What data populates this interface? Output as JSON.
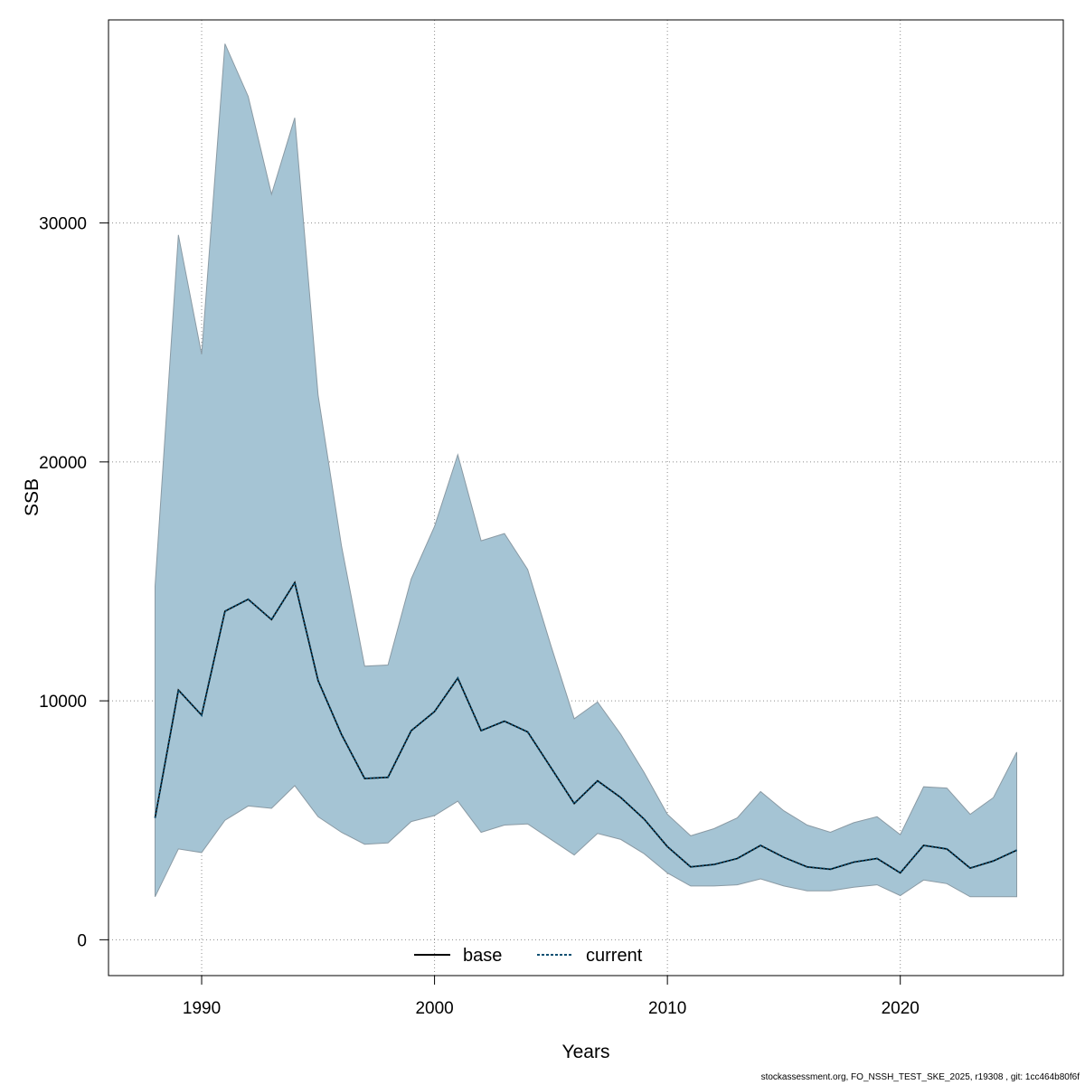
{
  "chart_data": {
    "type": "area",
    "title": "",
    "xlabel": "Years",
    "ylabel": "SSB",
    "xlim": [
      1986,
      2027
    ],
    "ylim": [
      -1500,
      38500
    ],
    "x_ticks": [
      1990,
      2000,
      2010,
      2020
    ],
    "y_ticks": [
      0,
      10000,
      20000,
      30000
    ],
    "grid": true,
    "legend_position": "bottom-center",
    "band_color": "#a5c4d4",
    "band_edge_color": "#8a9aa4",
    "x": [
      1988,
      1989,
      1990,
      1991,
      1992,
      1993,
      1994,
      1995,
      1996,
      1997,
      1998,
      1999,
      2000,
      2001,
      2002,
      2003,
      2004,
      2005,
      2006,
      2007,
      2008,
      2009,
      2010,
      2011,
      2012,
      2013,
      2014,
      2015,
      2016,
      2017,
      2018,
      2019,
      2020,
      2021,
      2022,
      2023,
      2024,
      2025
    ],
    "upper": [
      14800,
      29500,
      24500,
      37500,
      35300,
      31200,
      34400,
      22800,
      16500,
      11450,
      11500,
      15100,
      17300,
      20300,
      16700,
      17000,
      15500,
      12300,
      9250,
      9950,
      8600,
      7000,
      5250,
      4350,
      4650,
      5100,
      6200,
      5400,
      4800,
      4500,
      4900,
      5150,
      4400,
      6400,
      6350,
      5250,
      5950,
      7850
    ],
    "lower": [
      1800,
      3800,
      3650,
      5000,
      5600,
      5500,
      6450,
      5150,
      4500,
      4000,
      4050,
      4950,
      5200,
      5800,
      4500,
      4800,
      4850,
      4200,
      3550,
      4450,
      4200,
      3600,
      2800,
      2250,
      2250,
      2300,
      2550,
      2250,
      2050,
      2050,
      2200,
      2300,
      1850,
      2500,
      2350,
      1800,
      1800,
      1800
    ],
    "series": [
      {
        "name": "base",
        "line_style": "solid",
        "color": "#000000",
        "values": [
          5100,
          10450,
          9400,
          13750,
          14250,
          13400,
          14950,
          10850,
          8600,
          6750,
          6800,
          8750,
          9550,
          10950,
          8750,
          9150,
          8700,
          7200,
          5700,
          6650,
          5950,
          5050,
          3900,
          3050,
          3150,
          3400,
          3950,
          3450,
          3050,
          2950,
          3250,
          3400,
          2800,
          3950,
          3800,
          3000,
          3300,
          3750
        ]
      },
      {
        "name": "current",
        "line_style": "dotted",
        "color": "#0b4f72",
        "values": [
          5100,
          10450,
          9400,
          13750,
          14250,
          13400,
          14950,
          10850,
          8600,
          6750,
          6800,
          8750,
          9550,
          10950,
          8750,
          9150,
          8700,
          7200,
          5700,
          6650,
          5950,
          5050,
          3900,
          3050,
          3150,
          3400,
          3950,
          3450,
          3050,
          2950,
          3250,
          3400,
          2800,
          3950,
          3800,
          3000,
          3300,
          3750
        ]
      }
    ]
  },
  "footer_text": "stockassessment.org, FO_NSSH_TEST_SKE_2025, r19308 , git: 1cc464b80f6f"
}
